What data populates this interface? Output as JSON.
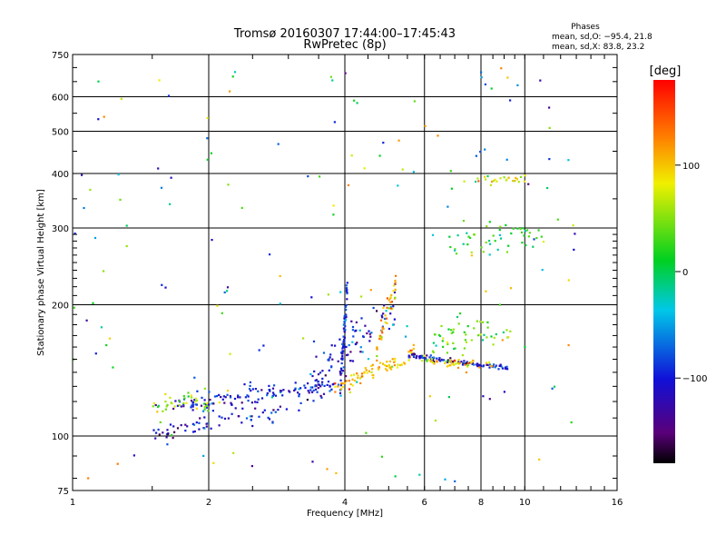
{
  "header": {
    "title": "Tromsø 20160307 17:44:00–17:45:43",
    "subtitle": "RwPretec (8p)"
  },
  "phase_stats": {
    "heading": "Phases",
    "line_o": "mean, sd,O: −95.4, 21.8",
    "line_x": "mean, sd,X: 83.8, 23.2"
  },
  "chart_data": {
    "type": "scatter",
    "xlabel": "Frequency [MHz]",
    "ylabel": "Stationary phase Virtual Height [km]",
    "x_scale": "log",
    "y_scale": "log",
    "xlim": [
      1,
      16
    ],
    "ylim": [
      75,
      750
    ],
    "x_ticks": [
      1,
      2,
      4,
      6,
      8,
      10,
      16
    ],
    "x_tick_labels": [
      "1",
      "2",
      "4",
      "6",
      "8",
      "10",
      "16"
    ],
    "y_ticks": [
      75,
      100,
      200,
      300,
      400,
      500,
      600,
      750
    ],
    "y_tick_labels": [
      "75",
      "100",
      "200",
      "300",
      "400",
      "500",
      "600",
      "750"
    ],
    "grid": true,
    "colorbar": {
      "label": "[deg]",
      "range": [
        -180,
        180
      ],
      "ticks": [
        100,
        0,
        -100
      ],
      "tick_labels": [
        "100",
        "0",
        "−100"
      ],
      "colormap": "rainbow-black-purple-blue-cyan-green-yellow-orange-red"
    },
    "series": [
      {
        "cluster": "E-layer O-mode trace (~120 km)",
        "x_range": [
          1.65,
          3.8
        ],
        "y_start": 118,
        "y_end": 130,
        "phase": -100,
        "count": 130,
        "y_sigma": 0.025
      },
      {
        "cluster": "E-layer X-mode trace (~102 km)",
        "x_range": [
          1.5,
          3.2
        ],
        "y_start": 101,
        "y_end": 116,
        "phase": -110,
        "count": 65,
        "y_sigma": 0.02
      },
      {
        "cluster": "E-layer greenish echoes",
        "x_range": [
          1.5,
          2.0
        ],
        "y_start": 118,
        "y_end": 120,
        "phase": 55,
        "count": 35,
        "y_sigma": 0.025
      },
      {
        "cluster": "Sporadic spread near 4 MHz",
        "x_range": [
          3.9,
          4.05
        ],
        "y_start": 130,
        "y_end": 215,
        "phase": -95,
        "count": 70,
        "y_sigma": 0.04
      },
      {
        "cluster": "Spread echoes 3-5 MHz",
        "x_range": [
          3.3,
          5.2
        ],
        "y_start": 130,
        "y_end": 200,
        "phase": -100,
        "count": 90,
        "y_sigma": 0.06
      },
      {
        "cluster": "Rising yellow X trace",
        "x_range": [
          3.8,
          5.7
        ],
        "y_start": 128,
        "y_end": 155,
        "phase": 105,
        "count": 80,
        "y_sigma": 0.02
      },
      {
        "cluster": "Yellow spread 4.7-5.2 MHz",
        "x_range": [
          4.7,
          5.2
        ],
        "y_start": 160,
        "y_end": 220,
        "phase": 100,
        "count": 40,
        "y_sigma": 0.035
      },
      {
        "cluster": "F-layer O-mode trace (~148 km)",
        "x_range": [
          5.5,
          9.2
        ],
        "y_start": 153,
        "y_end": 143,
        "phase": -105,
        "count": 95,
        "y_sigma": 0.008
      },
      {
        "cluster": "F-layer X-mode trace",
        "x_range": [
          5.9,
          8.6
        ],
        "y_start": 150,
        "y_end": 144,
        "phase": 90,
        "count": 45,
        "y_sigma": 0.012
      },
      {
        "cluster": "Multi-colour echoes 6-9 MHz",
        "x_range": [
          6.2,
          9.3
        ],
        "y_start": 165,
        "y_end": 175,
        "phase": 40,
        "count": 55,
        "y_sigma": 0.05
      },
      {
        "cluster": "Echoes near 300 km",
        "x_range": [
          6.8,
          11.0
        ],
        "y_start": 270,
        "y_end": 290,
        "phase": 20,
        "count": 45,
        "y_sigma": 0.05
      },
      {
        "cluster": "Echoes near 390 km",
        "x_range": [
          7.3,
          10.2
        ],
        "y_start": 385,
        "y_end": 388,
        "phase": 90,
        "count": 25,
        "y_sigma": 0.012
      },
      {
        "cluster": "Scattered background",
        "x_range": [
          1.0,
          13.0
        ],
        "y_start": 78,
        "y_end": 700,
        "phase": 0,
        "count": 170,
        "y_sigma": 0
      }
    ]
  }
}
